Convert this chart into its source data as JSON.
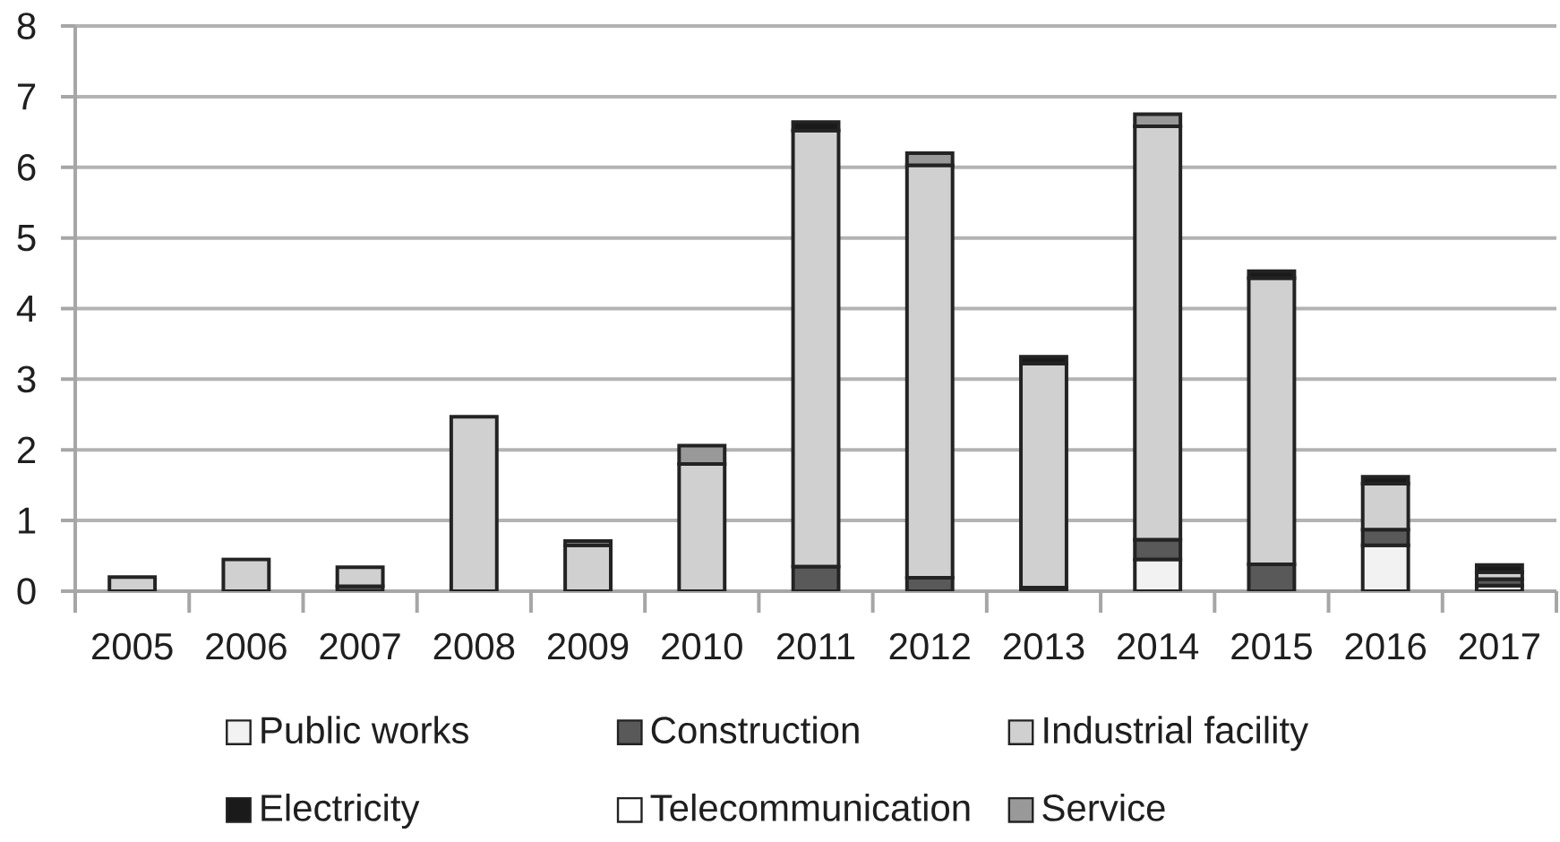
{
  "chart_data": {
    "type": "bar",
    "stacked": true,
    "categories": [
      "2005",
      "2006",
      "2007",
      "2008",
      "2009",
      "2010",
      "2011",
      "2012",
      "2013",
      "2014",
      "2015",
      "2016",
      "2017"
    ],
    "series": [
      {
        "name": "Public works",
        "color": "#f2f2f2",
        "values": [
          null,
          null,
          null,
          null,
          null,
          null,
          null,
          null,
          null,
          0.45,
          null,
          0.65,
          0.08
        ]
      },
      {
        "name": "Construction",
        "color": "#595959",
        "values": [
          null,
          null,
          0.07,
          null,
          null,
          null,
          0.35,
          0.19,
          0.05,
          0.28,
          0.38,
          0.22,
          0.09
        ]
      },
      {
        "name": "Industrial facility",
        "color": "#d0d0d0",
        "values": [
          0.2,
          0.45,
          0.27,
          2.47,
          0.65,
          1.8,
          6.17,
          5.84,
          3.17,
          5.85,
          4.05,
          0.65,
          0.1
        ]
      },
      {
        "name": "Electricity",
        "color": "#1a1a1a",
        "values": [
          null,
          null,
          null,
          null,
          null,
          null,
          0.12,
          null,
          0.1,
          null,
          0.1,
          0.1,
          0.1
        ]
      },
      {
        "name": "Telecommunication",
        "color": "#ffffff",
        "values": [
          null,
          null,
          null,
          null,
          null,
          null,
          null,
          null,
          null,
          null,
          null,
          null,
          null
        ]
      },
      {
        "name": "Service",
        "color": "#999999",
        "values": [
          null,
          null,
          null,
          null,
          0.06,
          0.26,
          null,
          0.17,
          null,
          0.17,
          null,
          null,
          null
        ]
      }
    ],
    "ylim": [
      0,
      8
    ],
    "yticks": [
      0,
      1,
      2,
      3,
      4,
      5,
      6,
      7,
      8
    ],
    "grid": "y",
    "legend": "bottom"
  }
}
